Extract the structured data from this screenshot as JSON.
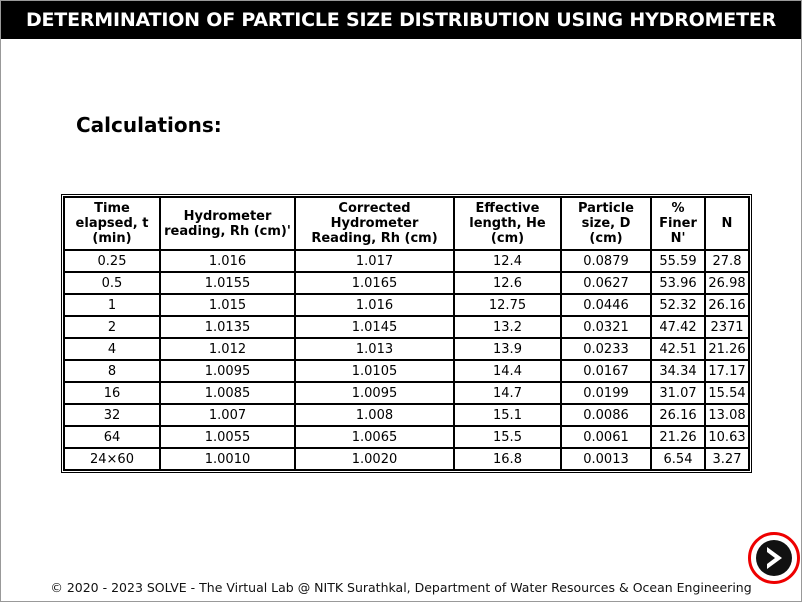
{
  "header": {
    "title": "DETERMINATION OF PARTICLE SIZE DISTRIBUTION USING HYDROMETER"
  },
  "section": {
    "heading": "Calculations:"
  },
  "table": {
    "columns": [
      "Time elapsed, t (min)",
      "Hydrometer reading, Rh (cm)'",
      "Corrected Hydrometer Reading, Rh (cm)",
      "Effective length, He (cm)",
      "Particle size, D (cm)",
      "% Finer N'",
      "N"
    ],
    "rows": [
      [
        "0.25",
        "1.016",
        "1.017",
        "12.4",
        "0.0879",
        "55.59",
        "27.8"
      ],
      [
        "0.5",
        "1.0155",
        "1.0165",
        "12.6",
        "0.0627",
        "53.96",
        "26.98"
      ],
      [
        "1",
        "1.015",
        "1.016",
        "12.75",
        "0.0446",
        "52.32",
        "26.16"
      ],
      [
        "2",
        "1.0135",
        "1.0145",
        "13.2",
        "0.0321",
        "47.42",
        "2371"
      ],
      [
        "4",
        "1.012",
        "1.013",
        "13.9",
        "0.0233",
        "42.51",
        "21.26"
      ],
      [
        "8",
        "1.0095",
        "1.0105",
        "14.4",
        "0.0167",
        "34.34",
        "17.17"
      ],
      [
        "16",
        "1.0085",
        "1.0095",
        "14.7",
        "0.0199",
        "31.07",
        "15.54"
      ],
      [
        "32",
        "1.007",
        "1.008",
        "15.1",
        "0.0086",
        "26.16",
        "13.08"
      ],
      [
        "64",
        "1.0055",
        "1.0065",
        "15.5",
        "0.0061",
        "21.26",
        "10.63"
      ],
      [
        "24×60",
        "1.0010",
        "1.0020",
        "16.8",
        "0.0013",
        "6.54",
        "3.27"
      ]
    ]
  },
  "footer": {
    "text": "© 2020 - 2023 SOLVE - The Virtual Lab @ NITK Surathkal, Department of Water Resources & Ocean Engineering"
  }
}
